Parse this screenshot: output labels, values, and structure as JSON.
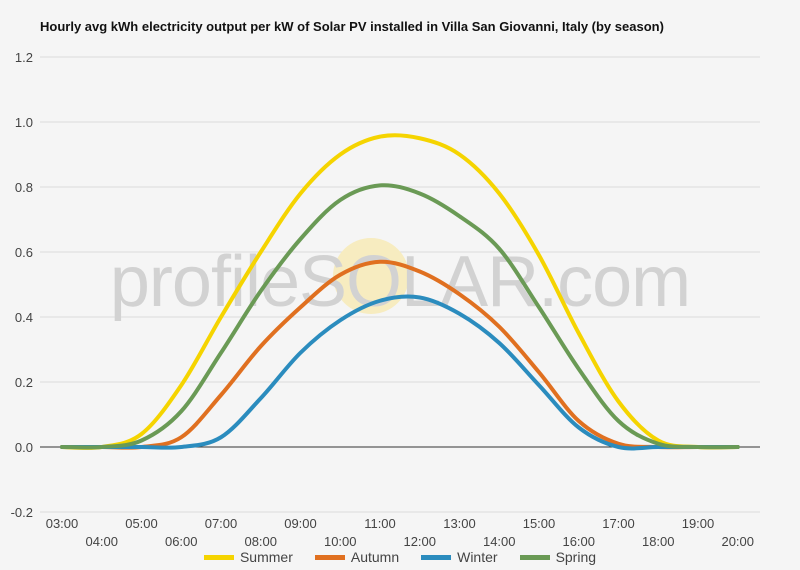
{
  "chart_data": {
    "type": "line",
    "title": "Hourly avg kWh electricity output per kW of Solar PV installed in Villa San Giovanni, Italy (by season)",
    "xlabel": "",
    "ylabel": "",
    "ylim": [
      -0.2,
      1.2
    ],
    "yticks": [
      "1.2",
      "1.0",
      "0.8",
      "0.6",
      "0.4",
      "0.2",
      "0.0",
      "-0.2"
    ],
    "ytick_values": [
      1.2,
      1.0,
      0.8,
      0.6,
      0.4,
      0.2,
      0.0,
      -0.2
    ],
    "x": [
      "03:00",
      "04:00",
      "05:00",
      "06:00",
      "07:00",
      "08:00",
      "09:00",
      "10:00",
      "11:00",
      "12:00",
      "13:00",
      "14:00",
      "15:00",
      "16:00",
      "17:00",
      "18:00",
      "19:00",
      "20:00"
    ],
    "grid": true,
    "legend_position": "bottom",
    "watermark": "profileSOLAR.com",
    "series": [
      {
        "name": "Summer",
        "color": "#f5d400",
        "values": [
          0,
          0,
          0.04,
          0.19,
          0.4,
          0.6,
          0.78,
          0.9,
          0.955,
          0.95,
          0.9,
          0.78,
          0.59,
          0.35,
          0.14,
          0.02,
          0,
          0
        ]
      },
      {
        "name": "Autumn",
        "color": "#e07020",
        "values": [
          0,
          0,
          0,
          0.03,
          0.16,
          0.31,
          0.43,
          0.53,
          0.57,
          0.54,
          0.47,
          0.37,
          0.23,
          0.08,
          0.01,
          0,
          0,
          0
        ]
      },
      {
        "name": "Winter",
        "color": "#2b8cbe",
        "values": [
          0,
          0,
          0,
          0,
          0.03,
          0.15,
          0.29,
          0.39,
          0.45,
          0.46,
          0.41,
          0.32,
          0.19,
          0.06,
          0,
          0,
          0,
          0
        ]
      },
      {
        "name": "Spring",
        "color": "#6a9a55",
        "values": [
          0,
          0,
          0.02,
          0.11,
          0.29,
          0.48,
          0.64,
          0.76,
          0.805,
          0.78,
          0.71,
          0.61,
          0.43,
          0.24,
          0.08,
          0.01,
          0,
          0
        ]
      }
    ]
  }
}
